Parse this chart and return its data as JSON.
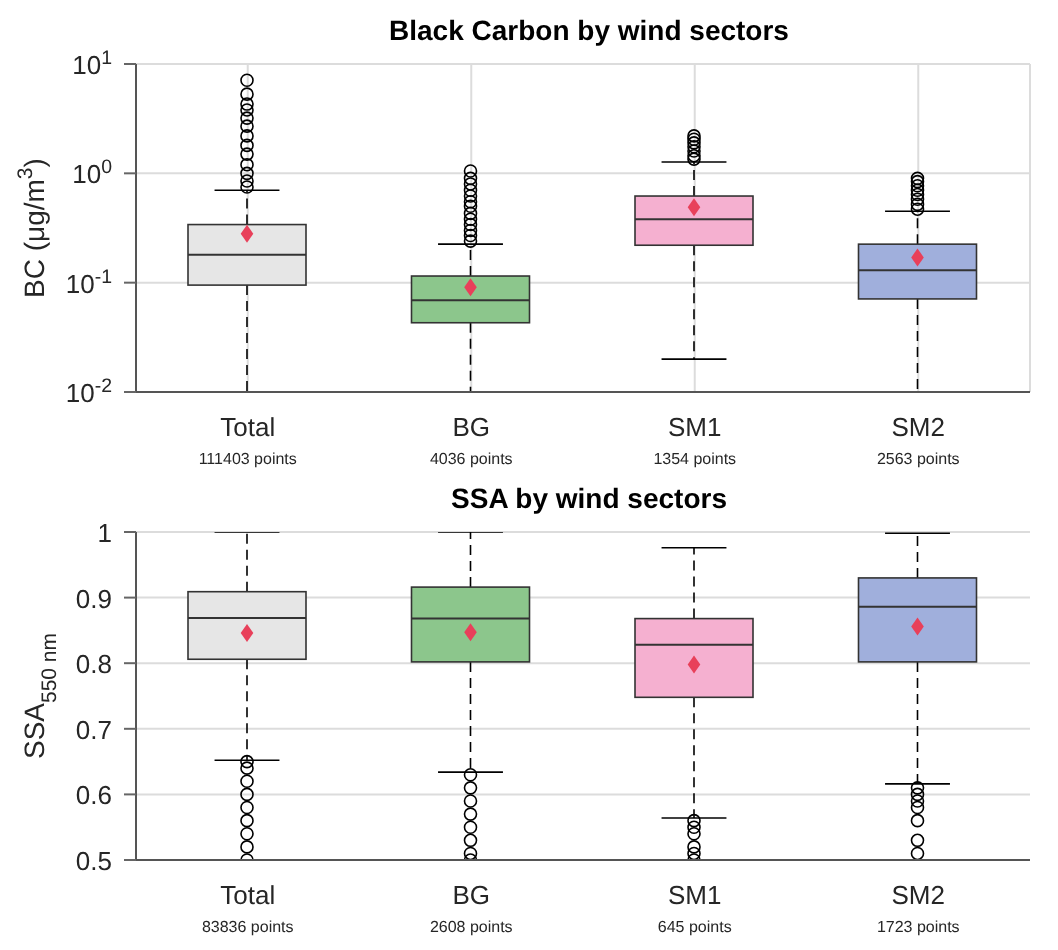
{
  "chart_data": [
    {
      "type": "box",
      "title": "Black Carbon by wind sectors",
      "ylabel": "BC (μg/m$^{3}$)",
      "categories": [
        "Total",
        "BG",
        "SM1",
        "SM2"
      ],
      "colors": [
        "#e6e6e6",
        "#8cc68c",
        "#f5b0d0",
        "#a0afdc"
      ],
      "log": true,
      "grid": true,
      "ylim": [
        0.01,
        10
      ],
      "yticks": [
        {
          "value": 0.01,
          "label": "10$^{-2}$"
        },
        {
          "value": 0.1,
          "label": "10$^{-1}$"
        },
        {
          "value": 1,
          "label": "10$^{0}$"
        },
        {
          "value": 10,
          "label": "10$^{1}$"
        }
      ],
      "boxes": [
        {
          "low": 0.01,
          "q1": 0.095,
          "median": 0.18,
          "q3": 0.34,
          "high": 0.7,
          "mean": 0.28,
          "outliers": [
            0.75,
            0.85,
            1,
            1.2,
            1.5,
            1.8,
            2.2,
            2.7,
            3.2,
            3.8,
            4.3,
            5.3,
            7.1
          ]
        },
        {
          "low": 0.01,
          "q1": 0.043,
          "median": 0.069,
          "q3": 0.115,
          "high": 0.225,
          "mean": 0.091,
          "outliers": [
            0.24,
            0.27,
            0.3,
            0.34,
            0.38,
            0.43,
            0.5,
            0.55,
            0.62,
            0.7,
            0.8,
            0.9,
            1.05
          ]
        },
        {
          "low": 0.02,
          "q1": 0.22,
          "median": 0.38,
          "q3": 0.62,
          "high": 1.27,
          "mean": 0.49,
          "outliers": [
            1.35,
            1.45,
            1.6,
            1.75,
            1.9,
            2.05,
            2.2
          ]
        },
        {
          "low": 0.01,
          "q1": 0.071,
          "median": 0.13,
          "q3": 0.225,
          "high": 0.45,
          "mean": 0.17,
          "outliers": [
            0.47,
            0.52,
            0.58,
            0.64,
            0.7,
            0.77,
            0.84,
            0.9
          ]
        }
      ],
      "annotations": [
        "111403 points",
        "4036 points",
        "1354 points",
        "2563 points"
      ]
    },
    {
      "type": "box",
      "title": "SSA by wind sectors",
      "ylabel": "SSA$_{550 nm}$",
      "categories": [
        "Total",
        "BG",
        "SM1",
        "SM2"
      ],
      "colors": [
        "#e6e6e6",
        "#8cc68c",
        "#f5b0d0",
        "#a0afdc"
      ],
      "grid": "y",
      "ylim": [
        0.5,
        1
      ],
      "yticks": [
        0.5,
        0.6,
        0.7,
        0.8,
        0.9,
        1
      ],
      "boxes": [
        {
          "low": 0.652,
          "q1": 0.806,
          "median": 0.869,
          "q3": 0.909,
          "high": 1,
          "mean": 0.846,
          "outliers": [
            0.5,
            0.52,
            0.54,
            0.56,
            0.58,
            0.6,
            0.62,
            0.64,
            0.65
          ]
        },
        {
          "low": 0.634,
          "q1": 0.802,
          "median": 0.868,
          "q3": 0.916,
          "high": 1,
          "mean": 0.847,
          "outliers": [
            0.5,
            0.51,
            0.53,
            0.55,
            0.57,
            0.59,
            0.61,
            0.63
          ]
        },
        {
          "low": 0.564,
          "q1": 0.748,
          "median": 0.828,
          "q3": 0.868,
          "high": 0.976,
          "mean": 0.798,
          "outliers": [
            0.5,
            0.51,
            0.52,
            0.54,
            0.55,
            0.56
          ]
        },
        {
          "low": 0.616,
          "q1": 0.802,
          "median": 0.886,
          "q3": 0.93,
          "high": 0.998,
          "mean": 0.856,
          "outliers": [
            0.51,
            0.53,
            0.56,
            0.58,
            0.59,
            0.6,
            0.61
          ]
        }
      ],
      "annotations": [
        "83836 points",
        "2608 points",
        "645 points",
        "1723 points"
      ]
    }
  ]
}
